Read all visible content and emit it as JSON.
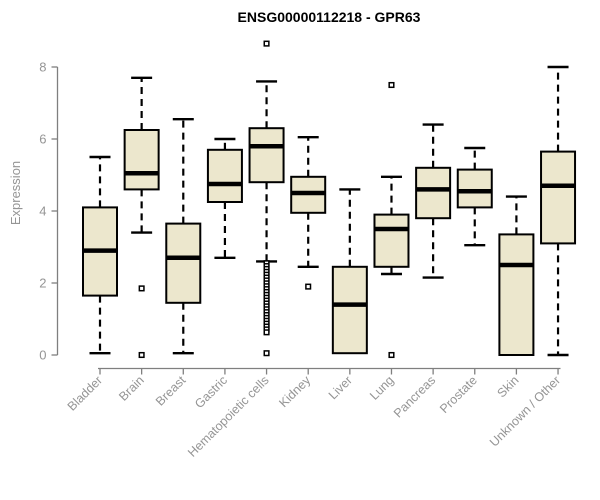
{
  "title": "ENSG00000112218 - GPR63",
  "y_axis": {
    "label": "Expression",
    "ticks": [
      0,
      2,
      4,
      6,
      8
    ]
  },
  "colors": {
    "background": "#ffffff",
    "box_fill": "#ece7cd",
    "box_stroke": "#000000",
    "median": "#000000",
    "whisker": "#000000",
    "outlier_fill": "#ffffff",
    "outlier_stroke": "#000000",
    "axis_line": "#7f7f7f",
    "axis_text": "#959595",
    "title_text": "#000000"
  },
  "chart_data": {
    "type": "boxplot",
    "title": "ENSG00000112218 - GPR63",
    "xlabel": "",
    "ylabel": "Expression",
    "ylim": [
      0,
      8
    ],
    "grid": false,
    "categories": [
      "Bladder",
      "Brain",
      "Breast",
      "Gastric",
      "Hematopoietic cells",
      "Kidney",
      "Liver",
      "Lung",
      "Pancreas",
      "Prostate",
      "Skin",
      "Unknown / Other"
    ],
    "series": [
      {
        "label": "Bladder",
        "whisker_low": 0.05,
        "q1": 1.65,
        "median": 2.9,
        "q3": 4.1,
        "whisker_high": 5.5,
        "outliers": []
      },
      {
        "label": "Brain",
        "whisker_low": 3.4,
        "q1": 4.6,
        "median": 5.05,
        "q3": 6.25,
        "whisker_high": 7.7,
        "outliers": [
          1.85,
          0.0
        ]
      },
      {
        "label": "Breast",
        "whisker_low": 0.05,
        "q1": 1.45,
        "median": 2.7,
        "q3": 3.65,
        "whisker_high": 6.55,
        "outliers": []
      },
      {
        "label": "Gastric",
        "whisker_low": 2.7,
        "q1": 4.25,
        "median": 4.75,
        "q3": 5.7,
        "whisker_high": 6.0,
        "outliers": []
      },
      {
        "label": "Hematopoietic cells",
        "whisker_low": 2.6,
        "q1": 4.8,
        "median": 5.8,
        "q3": 6.3,
        "whisker_high": 7.6,
        "outliers": [
          8.65,
          2.55,
          2.47,
          2.39,
          2.31,
          2.23,
          2.15,
          2.07,
          1.99,
          1.91,
          1.83,
          1.75,
          1.67,
          1.59,
          1.51,
          1.43,
          1.35,
          1.27,
          1.19,
          1.11,
          1.03,
          0.95,
          0.87,
          0.79,
          0.71,
          0.63,
          0.05
        ]
      },
      {
        "label": "Kidney",
        "whisker_low": 2.45,
        "q1": 3.95,
        "median": 4.5,
        "q3": 4.95,
        "whisker_high": 6.05,
        "outliers": [
          1.9
        ]
      },
      {
        "label": "Liver",
        "whisker_low": 0.05,
        "q1": 0.05,
        "median": 1.4,
        "q3": 2.45,
        "whisker_high": 4.6,
        "outliers": []
      },
      {
        "label": "Lung",
        "whisker_low": 2.25,
        "q1": 2.45,
        "median": 3.5,
        "q3": 3.9,
        "whisker_high": 4.95,
        "outliers": [
          7.5,
          0.0
        ]
      },
      {
        "label": "Pancreas",
        "whisker_low": 2.15,
        "q1": 3.8,
        "median": 4.6,
        "q3": 5.2,
        "whisker_high": 6.4,
        "outliers": []
      },
      {
        "label": "Prostate",
        "whisker_low": 3.05,
        "q1": 4.1,
        "median": 4.55,
        "q3": 5.15,
        "whisker_high": 5.75,
        "outliers": []
      },
      {
        "label": "Skin",
        "whisker_low": 0.0,
        "q1": 0.0,
        "median": 2.5,
        "q3": 3.35,
        "whisker_high": 4.4,
        "outliers": []
      },
      {
        "label": "Unknown / Other",
        "whisker_low": 0.0,
        "q1": 3.1,
        "median": 4.7,
        "q3": 5.65,
        "whisker_high": 8.0,
        "outliers": []
      }
    ]
  }
}
